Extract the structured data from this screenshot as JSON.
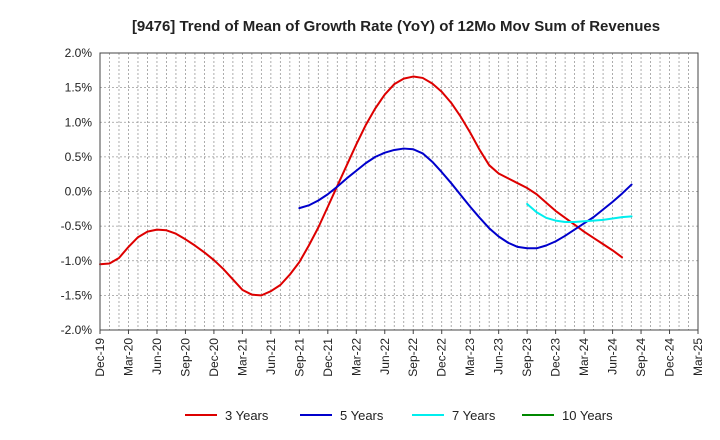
{
  "chart_data": {
    "type": "line",
    "title": "[9476]  Trend of Mean of Growth Rate (YoY) of 12Mo Mov Sum of Revenues",
    "xlabel": "",
    "ylabel": "",
    "ylim": [
      -2.0,
      2.0
    ],
    "yticks": [
      2.0,
      1.5,
      1.0,
      0.5,
      0.0,
      -0.5,
      -1.0,
      -1.5,
      -2.0
    ],
    "ytick_labels": [
      "2.0%",
      "1.5%",
      "1.0%",
      "0.5%",
      "0.0%",
      "-0.5%",
      "-1.0%",
      "-1.5%",
      "-2.0%"
    ],
    "x_start": "Dec-19",
    "x_month_count": 63,
    "x_tick_labels": [
      "Dec-19",
      "Mar-20",
      "Jun-20",
      "Sep-20",
      "Dec-20",
      "Mar-21",
      "Jun-21",
      "Sep-21",
      "Dec-21",
      "Mar-22",
      "Jun-22",
      "Sep-22",
      "Dec-22",
      "Mar-23",
      "Jun-23",
      "Sep-23",
      "Dec-23",
      "Mar-24",
      "Jun-24",
      "Sep-24",
      "Dec-24",
      "Mar-25"
    ],
    "grid": true,
    "legend_position": "bottom",
    "series": [
      {
        "name": "3 Years",
        "color": "#dd0000",
        "start_index": 0,
        "values": [
          -1.05,
          -1.04,
          -0.96,
          -0.8,
          -0.66,
          -0.58,
          -0.55,
          -0.56,
          -0.61,
          -0.69,
          -0.78,
          -0.88,
          -0.99,
          -1.12,
          -1.27,
          -1.42,
          -1.49,
          -1.5,
          -1.44,
          -1.35,
          -1.2,
          -1.02,
          -0.78,
          -0.52,
          -0.22,
          0.08,
          0.38,
          0.68,
          0.96,
          1.2,
          1.4,
          1.55,
          1.63,
          1.66,
          1.64,
          1.56,
          1.44,
          1.28,
          1.08,
          0.85,
          0.6,
          0.38,
          0.26,
          0.19,
          0.12,
          0.05,
          -0.04,
          -0.16,
          -0.28,
          -0.38,
          -0.48,
          -0.58,
          -0.67,
          -0.76,
          -0.85,
          -0.95
        ]
      },
      {
        "name": "5 Years",
        "color": "#0000cc",
        "start_index": 21,
        "values": [
          -0.24,
          -0.2,
          -0.13,
          -0.04,
          0.07,
          0.19,
          0.3,
          0.41,
          0.5,
          0.56,
          0.6,
          0.62,
          0.61,
          0.55,
          0.43,
          0.28,
          0.12,
          -0.05,
          -0.22,
          -0.38,
          -0.53,
          -0.65,
          -0.74,
          -0.8,
          -0.82,
          -0.82,
          -0.78,
          -0.72,
          -0.64,
          -0.55,
          -0.46,
          -0.37,
          -0.26,
          -0.15,
          -0.03,
          0.1
        ]
      },
      {
        "name": "7 Years",
        "color": "#00eeee",
        "start_index": 45,
        "values": [
          -0.18,
          -0.3,
          -0.38,
          -0.42,
          -0.44,
          -0.44,
          -0.43,
          -0.42,
          -0.41,
          -0.39,
          -0.37,
          -0.36
        ]
      },
      {
        "name": "10 Years",
        "color": "#008800",
        "start_index": 0,
        "values": []
      }
    ]
  }
}
